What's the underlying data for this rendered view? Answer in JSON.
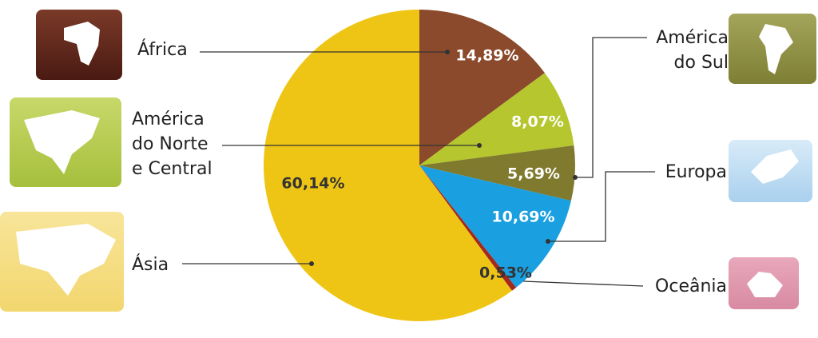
{
  "chart_data": {
    "type": "pie",
    "categories": [
      "África",
      "América do Norte e Central",
      "América do Sul",
      "Europa",
      "Oceânia",
      "Ásia"
    ],
    "values": [
      14.89,
      8.07,
      5.69,
      10.69,
      0.53,
      60.14
    ],
    "value_labels": [
      "14,89%",
      "8,07%",
      "5,69%",
      "10,69%",
      "0,53%",
      "60,14%"
    ],
    "colors": [
      "#8b4a2b",
      "#b5c62e",
      "#7f7a2e",
      "#1a9fe0",
      "#a3281e",
      "#efc515"
    ]
  }
}
